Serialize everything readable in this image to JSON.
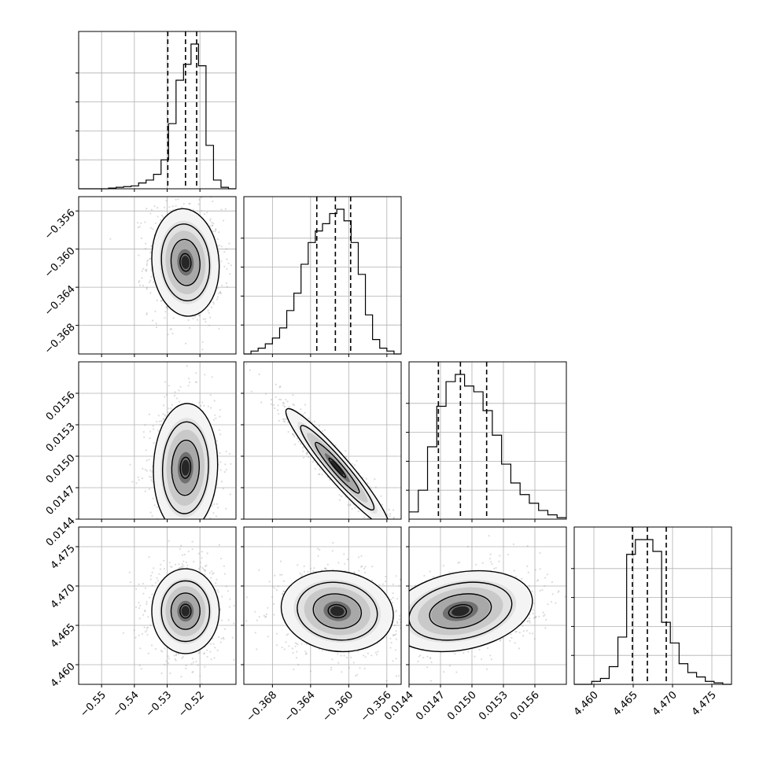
{
  "chart_data": {
    "type": "corner",
    "title": "",
    "grid": true,
    "parameters": [
      {
        "range": [
          -0.557,
          -0.509
        ],
        "quantiles": [
          -0.5298,
          -0.5244,
          -0.521
        ],
        "ticks": [
          {
            "v": -0.55,
            "label": "−0.55"
          },
          {
            "v": -0.54,
            "label": "−0.54"
          },
          {
            "v": -0.53,
            "label": "−0.53"
          },
          {
            "v": -0.52,
            "label": "−0.52"
          }
        ],
        "hist": [
          0,
          0,
          0,
          0,
          0.005,
          0.01,
          0.015,
          0.02,
          0.04,
          0.06,
          0.1,
          0.2,
          0.45,
          0.75,
          0.86,
          1.0,
          0.85,
          0.3,
          0.06,
          0.01,
          0
        ]
      },
      {
        "range": [
          -0.371,
          -0.3545
        ],
        "quantiles": [
          -0.36335,
          -0.3614,
          -0.3598
        ],
        "ticks": [
          {
            "v": -0.368,
            "label": "−0.368"
          },
          {
            "v": -0.364,
            "label": "−0.364"
          },
          {
            "v": -0.36,
            "label": "−0.360"
          },
          {
            "v": -0.356,
            "label": "−0.356"
          }
        ],
        "hist": [
          0,
          0.02,
          0.04,
          0.07,
          0.11,
          0.18,
          0.3,
          0.42,
          0.62,
          0.77,
          0.85,
          0.9,
          0.97,
          1.0,
          0.92,
          0.77,
          0.55,
          0.27,
          0.1,
          0.04,
          0.02,
          0
        ]
      },
      {
        "range": [
          0.0144,
          0.0159
        ],
        "quantiles": [
          0.01468,
          0.01489,
          0.01514
        ],
        "ticks": [
          {
            "v": 0.0144,
            "label": "0.0144"
          },
          {
            "v": 0.0147,
            "label": "0.0147"
          },
          {
            "v": 0.015,
            "label": "0.0150"
          },
          {
            "v": 0.0153,
            "label": "0.0153"
          },
          {
            "v": 0.0156,
            "label": "0.0156"
          }
        ],
        "hist": [
          0.05,
          0.2,
          0.5,
          0.78,
          0.95,
          1.0,
          0.92,
          0.88,
          0.75,
          0.58,
          0.38,
          0.25,
          0.17,
          0.11,
          0.06,
          0.03,
          0.01
        ]
      },
      {
        "range": [
          4.4575,
          4.4775
        ],
        "quantiles": [
          4.4649,
          4.4668,
          4.4692
        ],
        "ticks": [
          {
            "v": 4.46,
            "label": "4.460"
          },
          {
            "v": 4.465,
            "label": "4.465"
          },
          {
            "v": 4.47,
            "label": "4.470"
          },
          {
            "v": 4.475,
            "label": "4.475"
          }
        ],
        "hist": [
          0,
          0,
          0.02,
          0.04,
          0.12,
          0.32,
          0.88,
          0.98,
          0.98,
          0.9,
          0.42,
          0.28,
          0.14,
          0.08,
          0.05,
          0.02,
          0.01,
          0
        ]
      }
    ],
    "pairs": [
      {
        "row": 1,
        "col": 0,
        "mean": [
          -0.5244,
          -0.3614
        ],
        "sd": [
          0.0042,
          0.0023
        ],
        "rho": -0.08
      },
      {
        "row": 2,
        "col": 0,
        "mean": [
          -0.5244,
          0.01489
        ],
        "sd": [
          0.004,
          0.00025
        ],
        "rho": 0.05
      },
      {
        "row": 2,
        "col": 1,
        "mean": [
          -0.3612,
          0.01489
        ],
        "sd": [
          0.0022,
          0.00023
        ],
        "rho": -0.95
      },
      {
        "row": 3,
        "col": 0,
        "mean": [
          -0.5244,
          4.4668
        ],
        "sd": [
          0.0042,
          0.0022
        ],
        "rho": 0.0
      },
      {
        "row": 3,
        "col": 1,
        "mean": [
          -0.3612,
          4.4668
        ],
        "sd": [
          0.0024,
          0.0021
        ],
        "rho": -0.1
      },
      {
        "row": 3,
        "col": 2,
        "mean": [
          0.01489,
          4.4668
        ],
        "sd": [
          0.00028,
          0.0021
        ],
        "rho": 0.25
      }
    ]
  }
}
